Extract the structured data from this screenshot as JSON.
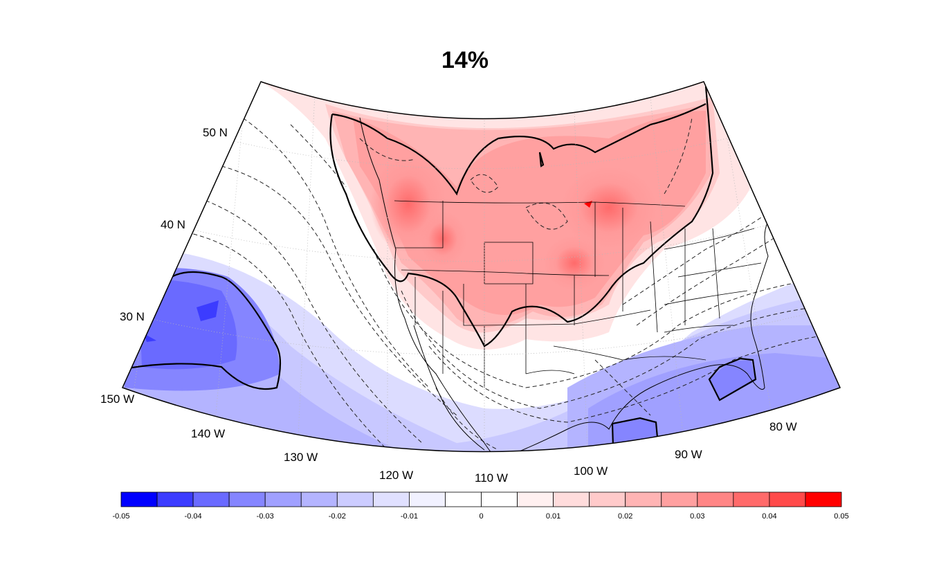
{
  "title": "14%",
  "lat_labels": [
    "50 N",
    "40 N",
    "30 N"
  ],
  "lon_labels": [
    "150 W",
    "140 W",
    "130 W",
    "120 W",
    "110 W",
    "100 W",
    "90 W",
    "80 W"
  ],
  "colorbar": {
    "ticks": [
      "-0.05",
      "-0.04",
      "-0.03",
      "-0.02",
      "-0.01",
      "0",
      "0.01",
      "0.02",
      "0.03",
      "0.04",
      "0.05"
    ],
    "colors": [
      "#0000ff",
      "#3c3cff",
      "#6a6aff",
      "#8585ff",
      "#a0a0ff",
      "#b4b4ff",
      "#ccccff",
      "#e0e0ff",
      "#f1f1ff",
      "#ffffff",
      "#ffffff",
      "#fff0f0",
      "#ffdcdc",
      "#ffcaca",
      "#ffb4b4",
      "#ffa0a0",
      "#ff8585",
      "#ff6a6a",
      "#ff4a4a",
      "#ff0000"
    ]
  }
}
